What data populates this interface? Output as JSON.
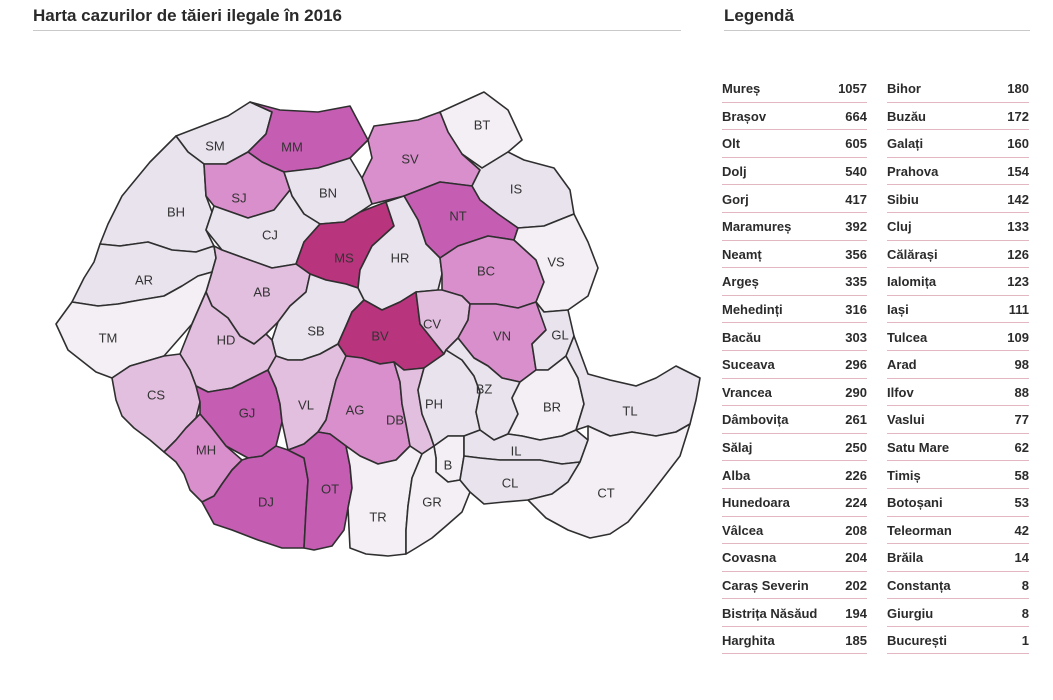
{
  "map": {
    "title": "Harta cazurilor de tăieri ilegale în 2016",
    "colors": {
      "very_high": "#b8347d",
      "high": "#c55db3",
      "medium": "#d98fcc",
      "low": "#e2bfdf",
      "very_low": "#e9e3ee",
      "minimal": "#f3eff4"
    },
    "counties": [
      {
        "code": "SM",
        "level": "very_low"
      },
      {
        "code": "MM",
        "level": "high"
      },
      {
        "code": "BT",
        "level": "minimal"
      },
      {
        "code": "SV",
        "level": "medium"
      },
      {
        "code": "BH",
        "level": "very_low"
      },
      {
        "code": "SJ",
        "level": "medium"
      },
      {
        "code": "BN",
        "level": "very_low"
      },
      {
        "code": "IS",
        "level": "very_low"
      },
      {
        "code": "CJ",
        "level": "very_low"
      },
      {
        "code": "NT",
        "level": "high"
      },
      {
        "code": "MS",
        "level": "very_high"
      },
      {
        "code": "HR",
        "level": "very_low"
      },
      {
        "code": "BC",
        "level": "medium"
      },
      {
        "code": "VS",
        "level": "minimal"
      },
      {
        "code": "AR",
        "level": "very_low"
      },
      {
        "code": "AB",
        "level": "low"
      },
      {
        "code": "TM",
        "level": "minimal"
      },
      {
        "code": "SB",
        "level": "very_low"
      },
      {
        "code": "BV",
        "level": "very_high"
      },
      {
        "code": "CV",
        "level": "low"
      },
      {
        "code": "VN",
        "level": "medium"
      },
      {
        "code": "GL",
        "level": "very_low"
      },
      {
        "code": "HD",
        "level": "low"
      },
      {
        "code": "CS",
        "level": "low"
      },
      {
        "code": "GJ",
        "level": "high"
      },
      {
        "code": "VL",
        "level": "low"
      },
      {
        "code": "AG",
        "level": "medium"
      },
      {
        "code": "DB",
        "level": "low"
      },
      {
        "code": "PH",
        "level": "very_low"
      },
      {
        "code": "BZ",
        "level": "very_low"
      },
      {
        "code": "BR",
        "level": "minimal"
      },
      {
        "code": "TL",
        "level": "very_low"
      },
      {
        "code": "MH",
        "level": "medium"
      },
      {
        "code": "DJ",
        "level": "high"
      },
      {
        "code": "OT",
        "level": "high"
      },
      {
        "code": "B",
        "level": "minimal"
      },
      {
        "code": "IL",
        "level": "very_low"
      },
      {
        "code": "TR",
        "level": "minimal"
      },
      {
        "code": "GR",
        "level": "minimal"
      },
      {
        "code": "CL",
        "level": "very_low"
      },
      {
        "code": "CT",
        "level": "minimal"
      }
    ]
  },
  "legend": {
    "title": "Legendă",
    "left": [
      {
        "name": "Mureș",
        "value": "1057"
      },
      {
        "name": "Brașov",
        "value": "664"
      },
      {
        "name": "Olt",
        "value": "605"
      },
      {
        "name": "Dolj",
        "value": "540"
      },
      {
        "name": "Gorj",
        "value": "417"
      },
      {
        "name": "Maramureș",
        "value": "392"
      },
      {
        "name": "Neamț",
        "value": "356"
      },
      {
        "name": "Argeș",
        "value": "335"
      },
      {
        "name": "Mehedinți",
        "value": "316"
      },
      {
        "name": "Bacău",
        "value": "303"
      },
      {
        "name": "Suceava",
        "value": "296"
      },
      {
        "name": "Vrancea",
        "value": "290"
      },
      {
        "name": "Dâmbovița",
        "value": "261"
      },
      {
        "name": "Sălaj",
        "value": "250"
      },
      {
        "name": "Alba",
        "value": "226"
      },
      {
        "name": "Hunedoara",
        "value": "224"
      },
      {
        "name": "Vâlcea",
        "value": "208"
      },
      {
        "name": "Covasna",
        "value": "204"
      },
      {
        "name": "Caraș Severin",
        "value": "202"
      },
      {
        "name": "Bistrița Năsăud",
        "value": "194"
      },
      {
        "name": "Harghita",
        "value": "185"
      }
    ],
    "right": [
      {
        "name": "Bihor",
        "value": "180"
      },
      {
        "name": "Buzău",
        "value": "172"
      },
      {
        "name": "Galați",
        "value": "160"
      },
      {
        "name": "Prahova",
        "value": "154"
      },
      {
        "name": "Sibiu",
        "value": "142"
      },
      {
        "name": "Cluj",
        "value": "133"
      },
      {
        "name": "Călărași",
        "value": "126"
      },
      {
        "name": "Ialomița",
        "value": "123"
      },
      {
        "name": "Iași",
        "value": "111"
      },
      {
        "name": "Tulcea",
        "value": "109"
      },
      {
        "name": "Arad",
        "value": "98"
      },
      {
        "name": "Ilfov",
        "value": "88"
      },
      {
        "name": "Vaslui",
        "value": "77"
      },
      {
        "name": "Satu Mare",
        "value": "62"
      },
      {
        "name": "Timiș",
        "value": "58"
      },
      {
        "name": "Botoșani",
        "value": "53"
      },
      {
        "name": "Teleorman",
        "value": "42"
      },
      {
        "name": "Brăila",
        "value": "14"
      },
      {
        "name": "Constanța",
        "value": "8"
      },
      {
        "name": "Giurgiu",
        "value": "8"
      },
      {
        "name": "București",
        "value": "1"
      }
    ]
  }
}
